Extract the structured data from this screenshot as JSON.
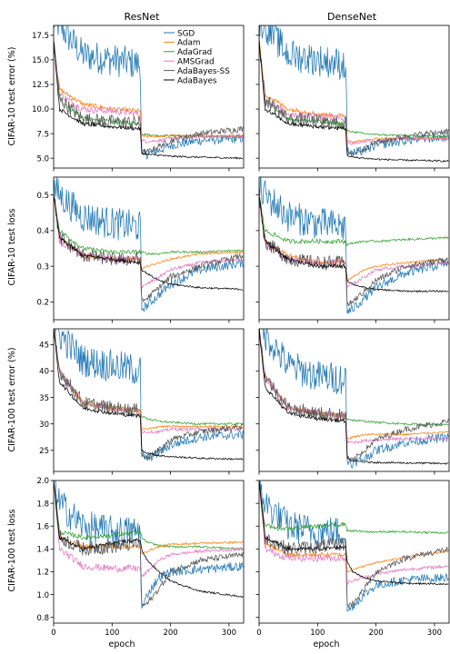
{
  "figure": {
    "column_titles": [
      "ResNet",
      "DenseNet"
    ],
    "xlabel": "epoch",
    "row_labels": [
      "CIFAR-10 test error (%)",
      "CIFAR-10 test loss",
      "CIFAR-100 test error (%)",
      "CIFAR-100 test loss"
    ]
  },
  "chart_data": {
    "type": "line",
    "layout": "4 rows x 2 columns of line subplots, shared x axis",
    "x": {
      "label": "epoch",
      "range": [
        0,
        325
      ],
      "ticks": [
        0,
        100,
        200,
        300
      ],
      "tick_labels": [
        "0",
        "100",
        "200",
        "300"
      ]
    },
    "legend": {
      "placement": "top-left panel, upper right",
      "entries": [
        {
          "name": "SGD",
          "color": "#1f77b4"
        },
        {
          "name": "Adam",
          "color": "#ff7f0e"
        },
        {
          "name": "AdaGrad",
          "color": "#2ca02c"
        },
        {
          "name": "AMSGrad",
          "color": "#e377c2"
        },
        {
          "name": "AdaBayes-SS",
          "color": "#555555"
        },
        {
          "name": "AdaBayes",
          "color": "#000000"
        }
      ]
    },
    "rows": [
      {
        "ylabel": "CIFAR-10 test error (%)",
        "ylim": [
          4.0,
          18.5
        ],
        "yticks": [
          5.0,
          7.5,
          10.0,
          12.5,
          15.0,
          17.5
        ],
        "ytick_labels": [
          "5.0",
          "7.5",
          "10.0",
          "12.5",
          "15.0",
          "17.5"
        ]
      },
      {
        "ylabel": "CIFAR-10 test loss",
        "ylim": [
          0.15,
          0.55
        ],
        "yticks": [
          0.2,
          0.3,
          0.4,
          0.5
        ],
        "ytick_labels": [
          "0.2",
          "0.3",
          "0.4",
          "0.5"
        ]
      },
      {
        "ylabel": "CIFAR-100 test error (%)",
        "ylim": [
          21.0,
          48.0
        ],
        "yticks": [
          25,
          30,
          35,
          40,
          45
        ],
        "ytick_labels": [
          "25",
          "30",
          "35",
          "40",
          "45"
        ]
      },
      {
        "ylabel": "CIFAR-100 test loss",
        "ylim": [
          0.75,
          2.0
        ],
        "yticks": [
          0.8,
          1.0,
          1.2,
          1.4,
          1.6,
          1.8,
          2.0
        ],
        "ytick_labels": [
          "0.8",
          "1.0",
          "1.2",
          "1.4",
          "1.6",
          "1.8",
          "2.0"
        ]
      }
    ],
    "columns": [
      "ResNet",
      "DenseNet"
    ],
    "series_keypoints_note": "approximate trajectories read off the curves: values at epochs [0,10,50,100,149,150,160,180,200,250,325]",
    "series": {
      "ResNet": [
        {
          "SGD": [
            19,
            18.5,
            15.5,
            15,
            14.5,
            5.5,
            5.4,
            5.8,
            6.3,
            6.8,
            7.0
          ],
          "Adam": [
            17,
            12,
            10.5,
            10,
            9.8,
            7.3,
            7.2,
            7.2,
            7.3,
            7.3,
            7.3
          ],
          "AdaGrad": [
            17,
            11,
            9,
            8.7,
            8.5,
            7.5,
            7.4,
            7.3,
            7.3,
            7.2,
            7.2
          ],
          "AMSGrad": [
            17,
            11.5,
            10,
            9.8,
            9.5,
            6.8,
            6.7,
            6.8,
            7.0,
            7.2,
            7.2
          ],
          "AdaBayes-SS": [
            17,
            11,
            9,
            8.7,
            8.6,
            5.6,
            5.6,
            6.2,
            6.8,
            7.5,
            8.0
          ],
          "AdaBayes": [
            17,
            10,
            8.5,
            8.2,
            8.0,
            5.5,
            5.4,
            5.3,
            5.2,
            5.1,
            5.0
          ]
        },
        {
          "SGD": [
            0.52,
            0.5,
            0.44,
            0.42,
            0.41,
            0.18,
            0.19,
            0.22,
            0.25,
            0.29,
            0.31
          ],
          "Adam": [
            0.5,
            0.38,
            0.33,
            0.32,
            0.32,
            0.29,
            0.3,
            0.31,
            0.32,
            0.335,
            0.34
          ],
          "AdaGrad": [
            0.5,
            0.4,
            0.35,
            0.34,
            0.34,
            0.34,
            0.335,
            0.335,
            0.34,
            0.34,
            0.345
          ],
          "AMSGrad": [
            0.5,
            0.37,
            0.33,
            0.32,
            0.32,
            0.24,
            0.25,
            0.27,
            0.29,
            0.31,
            0.32
          ],
          "AdaBayes-SS": [
            0.5,
            0.38,
            0.33,
            0.32,
            0.32,
            0.2,
            0.21,
            0.24,
            0.27,
            0.3,
            0.33
          ],
          "AdaBayes": [
            0.5,
            0.38,
            0.33,
            0.32,
            0.31,
            0.29,
            0.28,
            0.26,
            0.25,
            0.24,
            0.235
          ]
        },
        {
          "SGD": [
            48,
            47,
            42,
            41,
            40,
            24,
            23.5,
            24.5,
            26,
            27.5,
            28
          ],
          "Adam": [
            48,
            40,
            34,
            33,
            32.5,
            29,
            29,
            29.5,
            29.5,
            29.5,
            29.5
          ],
          "AdaGrad": [
            48,
            40,
            34,
            33,
            32.5,
            31.5,
            31,
            30.5,
            30.3,
            30,
            30
          ],
          "AMSGrad": [
            48,
            40,
            34,
            33,
            32.5,
            28.5,
            28.5,
            28.5,
            29,
            29,
            29
          ],
          "AdaBayes-SS": [
            48,
            40,
            34,
            33,
            32.5,
            24,
            23.5,
            25,
            27,
            28.5,
            29.5
          ],
          "AdaBayes": [
            48,
            38,
            33,
            32,
            31.5,
            25,
            24.5,
            24,
            23.8,
            23.5,
            23.3
          ]
        },
        {
          "SGD": [
            2.0,
            1.8,
            1.6,
            1.55,
            1.55,
            0.85,
            1.0,
            1.15,
            1.2,
            1.22,
            1.25
          ],
          "Adam": [
            2.0,
            1.5,
            1.42,
            1.42,
            1.42,
            1.35,
            1.38,
            1.42,
            1.44,
            1.45,
            1.46
          ],
          "AdaGrad": [
            2.0,
            1.55,
            1.5,
            1.52,
            1.55,
            1.5,
            1.46,
            1.43,
            1.42,
            1.42,
            1.4
          ],
          "AMSGrad": [
            2.0,
            1.4,
            1.25,
            1.23,
            1.23,
            1.15,
            1.2,
            1.3,
            1.35,
            1.38,
            1.4
          ],
          "AdaBayes-SS": [
            2.0,
            1.5,
            1.4,
            1.42,
            1.45,
            0.9,
            0.92,
            1.05,
            1.2,
            1.3,
            1.35
          ],
          "AdaBayes": [
            2.0,
            1.5,
            1.4,
            1.45,
            1.48,
            1.4,
            1.3,
            1.2,
            1.12,
            1.03,
            0.98
          ]
        }
      ],
      "DenseNet": [
        {
          "SGD": [
            19,
            18.5,
            15.5,
            15,
            14.5,
            5.8,
            5.5,
            5.8,
            6.3,
            6.8,
            7.2
          ],
          "Adam": [
            17,
            11.5,
            10,
            9.5,
            9.3,
            6.8,
            6.7,
            6.8,
            7.0,
            7.0,
            7.0
          ],
          "AdaGrad": [
            17,
            11,
            9,
            8.7,
            8.5,
            7.8,
            7.7,
            7.5,
            7.4,
            7.3,
            7.2
          ],
          "AMSGrad": [
            17,
            11,
            9.5,
            9.3,
            9.0,
            6.5,
            6.5,
            6.7,
            6.8,
            7.0,
            7.0
          ],
          "AdaBayes-SS": [
            17,
            11,
            9,
            8.7,
            8.5,
            5.3,
            5.4,
            6.0,
            6.6,
            7.2,
            7.8
          ],
          "AdaBayes": [
            17,
            10,
            8.5,
            8.2,
            8.0,
            5.3,
            5.1,
            5.0,
            4.9,
            4.8,
            4.7
          ]
        },
        {
          "SGD": [
            0.52,
            0.5,
            0.44,
            0.42,
            0.41,
            0.17,
            0.18,
            0.21,
            0.24,
            0.28,
            0.31
          ],
          "Adam": [
            0.5,
            0.37,
            0.33,
            0.31,
            0.31,
            0.26,
            0.27,
            0.29,
            0.3,
            0.31,
            0.32
          ],
          "AdaGrad": [
            0.5,
            0.4,
            0.37,
            0.37,
            0.37,
            0.36,
            0.365,
            0.37,
            0.37,
            0.375,
            0.38
          ],
          "AMSGrad": [
            0.5,
            0.36,
            0.32,
            0.31,
            0.31,
            0.24,
            0.25,
            0.27,
            0.29,
            0.3,
            0.31
          ],
          "AdaBayes-SS": [
            0.5,
            0.37,
            0.32,
            0.31,
            0.31,
            0.19,
            0.2,
            0.23,
            0.26,
            0.3,
            0.32
          ],
          "AdaBayes": [
            0.5,
            0.37,
            0.32,
            0.3,
            0.3,
            0.26,
            0.25,
            0.24,
            0.235,
            0.23,
            0.23
          ]
        },
        {
          "SGD": [
            48,
            47,
            41,
            39,
            38.5,
            23,
            22.5,
            23.5,
            25,
            26.5,
            27.5
          ],
          "Adam": [
            48,
            39,
            33,
            32,
            31.5,
            27,
            27.5,
            28,
            28,
            28,
            28.5
          ],
          "AdaGrad": [
            48,
            39,
            33,
            32,
            31.5,
            31,
            30.7,
            30.5,
            30.3,
            30,
            29.8
          ],
          "AMSGrad": [
            48,
            39,
            33,
            32,
            31.5,
            26.5,
            26.5,
            26.8,
            27,
            27.2,
            27.3
          ],
          "AdaBayes-SS": [
            48,
            39,
            33,
            32,
            31.5,
            23.5,
            23,
            25,
            27,
            29,
            30.5
          ],
          "AdaBayes": [
            48,
            37,
            32,
            31,
            30.5,
            23.5,
            23,
            22.8,
            22.7,
            22.6,
            22.5
          ]
        },
        {
          "SGD": [
            2.0,
            1.8,
            1.6,
            1.55,
            1.55,
            0.85,
            0.9,
            1.0,
            1.08,
            1.13,
            1.15
          ],
          "Adam": [
            2.0,
            1.45,
            1.35,
            1.35,
            1.35,
            1.2,
            1.22,
            1.25,
            1.28,
            1.33,
            1.38
          ],
          "AdaGrad": [
            2.0,
            1.6,
            1.58,
            1.6,
            1.62,
            1.56,
            1.56,
            1.55,
            1.55,
            1.55,
            1.54
          ],
          "AMSGrad": [
            2.0,
            1.4,
            1.32,
            1.32,
            1.32,
            1.1,
            1.12,
            1.15,
            1.18,
            1.22,
            1.25
          ],
          "AdaBayes-SS": [
            2.0,
            1.5,
            1.4,
            1.42,
            1.45,
            0.9,
            0.92,
            1.05,
            1.2,
            1.32,
            1.4
          ],
          "AdaBayes": [
            2.0,
            1.5,
            1.4,
            1.4,
            1.42,
            1.3,
            1.2,
            1.15,
            1.12,
            1.1,
            1.09
          ]
        }
      ]
    }
  }
}
